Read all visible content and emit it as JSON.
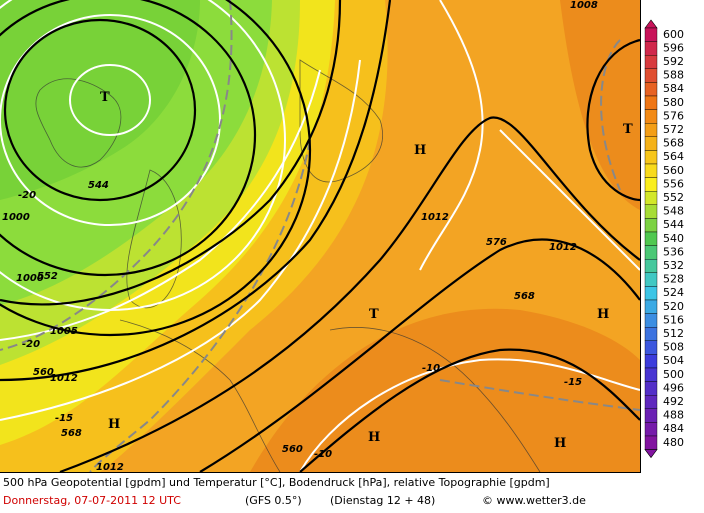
{
  "map": {
    "symbols": [
      "T",
      "T",
      "T",
      "H",
      "H",
      "H",
      "H",
      "H"
    ],
    "contour_labels": [
      544,
      552,
      560,
      568,
      576,
      1012,
      1012,
      1012,
      1012,
      1008,
      1000,
      1000,
      1005,
      -20,
      -20,
      -15,
      -10,
      -10,
      -15,
      568,
      560
    ]
  },
  "legend": {
    "levels": [
      600,
      596,
      592,
      588,
      584,
      580,
      576,
      572,
      568,
      564,
      560,
      556,
      552,
      548,
      544,
      540,
      536,
      532,
      528,
      524,
      520,
      516,
      512,
      508,
      504,
      500,
      496,
      492,
      488,
      484,
      480
    ]
  },
  "footer": {
    "description": "500 hPa Geopotential [gpdm] und Temperatur [°C], Bodendruck [hPa], relative Topographie [gpdm]",
    "date": "Donnerstag, 07-07-2011  12 UTC",
    "model": "(GFS 0.5°)",
    "run": "(Dienstag 12 + 48)",
    "source": "© www.wetter3.de"
  }
}
